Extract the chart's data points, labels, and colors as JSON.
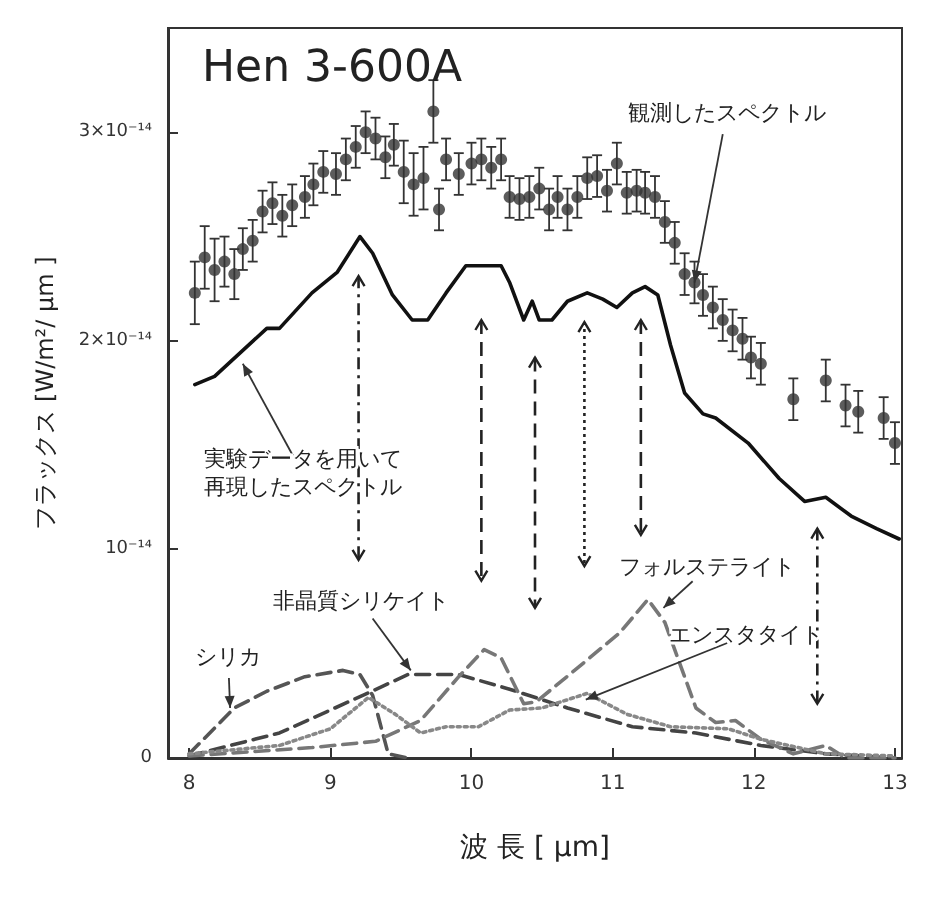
{
  "chart_data": {
    "type": "line",
    "title": "Hen 3-600A",
    "xlabel": "波 長 [ μm]",
    "ylabel": "フラックス [W/m²/ μm ]",
    "xlim": [
      7.85,
      13.05
    ],
    "ylim": [
      0,
      3.5e-14
    ],
    "xticks": [
      8,
      9,
      10,
      11,
      12,
      13
    ],
    "yticks": [
      0,
      {
        "value": 1e-14,
        "label": "10⁻¹⁴"
      },
      {
        "value": 2e-14,
        "label": "2×10⁻¹⁴"
      },
      {
        "value": 3e-14,
        "label": "3×10⁻¹⁴"
      }
    ],
    "series": [
      {
        "type": "scatter",
        "marker": "circle",
        "color": "#333333",
        "x": [
          8.04,
          8.11,
          8.18,
          8.25,
          8.32,
          8.38,
          8.45,
          8.52,
          8.59,
          8.66,
          8.73,
          8.82,
          8.88,
          8.95,
          9.04,
          9.11,
          9.18,
          9.25,
          9.32,
          9.39,
          9.45,
          9.52,
          9.59,
          9.66,
          9.73,
          9.77,
          9.82,
          9.91,
          10.0,
          10.07,
          10.14,
          10.21,
          10.27,
          10.34,
          10.41,
          10.48,
          10.55,
          10.61,
          10.68,
          10.75,
          10.82,
          10.89,
          10.96,
          11.03,
          11.1,
          11.17,
          11.23,
          11.3,
          11.37,
          11.44,
          11.51,
          11.58,
          11.64,
          11.71,
          11.78,
          11.85,
          11.92,
          11.98,
          12.05,
          12.28,
          12.51,
          12.65,
          12.74,
          12.92,
          13.0
        ],
        "values": [
          2.23e-14,
          2.4e-14,
          2.34e-14,
          2.38e-14,
          2.32e-14,
          2.44e-14,
          2.48e-14,
          2.62e-14,
          2.66e-14,
          2.6e-14,
          2.65e-14,
          2.69e-14,
          2.75e-14,
          2.81e-14,
          2.8e-14,
          2.87e-14,
          2.93e-14,
          3e-14,
          2.97e-14,
          2.88e-14,
          2.94e-14,
          2.81e-14,
          2.75e-14,
          2.78e-14,
          3.1e-14,
          2.63e-14,
          2.87e-14,
          2.8e-14,
          2.85e-14,
          2.87e-14,
          2.83e-14,
          2.87e-14,
          2.69e-14,
          2.68e-14,
          2.69e-14,
          2.73e-14,
          2.63e-14,
          2.69e-14,
          2.63e-14,
          2.69e-14,
          2.78e-14,
          2.79e-14,
          2.72e-14,
          2.85e-14,
          2.71e-14,
          2.72e-14,
          2.71e-14,
          2.69e-14,
          2.57e-14,
          2.47e-14,
          2.32e-14,
          2.28e-14,
          2.22e-14,
          2.16e-14,
          2.1e-14,
          2.05e-14,
          2.01e-14,
          1.92e-14,
          1.89e-14,
          1.72e-14,
          1.81e-14,
          1.69e-14,
          1.66e-14,
          1.63e-14,
          1.51e-14
        ],
        "errors": [
          1.5e-15,
          1.5e-15,
          1.5e-15,
          1.2e-15,
          1.2e-15,
          1e-15,
          1e-15,
          1e-15,
          1e-15,
          1e-15,
          1e-15,
          1e-15,
          1e-15,
          1e-15,
          1e-15,
          1e-15,
          1e-15,
          1e-15,
          1e-15,
          1e-15,
          1e-15,
          1.5e-15,
          1.5e-15,
          1.5e-15,
          1.5e-15,
          1e-15,
          1e-15,
          1e-15,
          1e-15,
          1e-15,
          1e-15,
          1e-15,
          1e-15,
          1e-15,
          1e-15,
          1e-15,
          1e-15,
          1e-15,
          1e-15,
          1e-15,
          1e-15,
          1e-15,
          1e-15,
          1e-15,
          1e-15,
          1e-15,
          1e-15,
          1e-15,
          1e-15,
          1e-15,
          1e-15,
          1e-15,
          1e-15,
          1e-15,
          1e-15,
          1e-15,
          1e-15,
          1e-15,
          1e-15,
          1e-15,
          1e-15,
          1e-15,
          1e-15,
          1e-15,
          1e-15
        ]
      },
      {
        "type": "line",
        "marker": "none",
        "line_style": "solid",
        "color": "#111111",
        "x": [
          8.04,
          8.18,
          8.55,
          8.64,
          8.87,
          9.05,
          9.21,
          9.3,
          9.44,
          9.58,
          9.69,
          9.82,
          9.96,
          10.21,
          10.27,
          10.37,
          10.43,
          10.48,
          10.57,
          10.68,
          10.82,
          10.93,
          11.03,
          11.14,
          11.23,
          11.32,
          11.41,
          11.51,
          11.64,
          11.73,
          11.96,
          12.18,
          12.36,
          12.51,
          12.69,
          12.87,
          13.03
        ],
        "values": [
          1.79e-14,
          1.83e-14,
          2.06e-14,
          2.06e-14,
          2.23e-14,
          2.33e-14,
          2.5e-14,
          2.42e-14,
          2.22e-14,
          2.1e-14,
          2.1e-14,
          2.23e-14,
          2.36e-14,
          2.36e-14,
          2.28e-14,
          2.1e-14,
          2.19e-14,
          2.1e-14,
          2.1e-14,
          2.19e-14,
          2.23e-14,
          2.2e-14,
          2.16e-14,
          2.23e-14,
          2.26e-14,
          2.22e-14,
          1.98e-14,
          1.75e-14,
          1.65e-14,
          1.63e-14,
          1.51e-14,
          1.34e-14,
          1.23e-14,
          1.25e-14,
          1.16e-14,
          1.1e-14,
          1.05e-14
        ]
      },
      {
        "type": "line",
        "marker": "none",
        "line_style": "dashed",
        "color": "#555555",
        "x": [
          8.0,
          8.32,
          8.55,
          8.82,
          9.09,
          9.21,
          9.3,
          9.41,
          9.55
        ],
        "values": [
          2e-16,
          2.4e-15,
          3.2e-15,
          3.9e-15,
          4.2e-15,
          4e-15,
          3e-15,
          2e-16,
          0
        ]
      },
      {
        "type": "line",
        "marker": "none",
        "line_style": "dashed",
        "color": "#444444",
        "x": [
          8.0,
          8.64,
          9.23,
          9.55,
          9.91,
          10.27,
          10.68,
          11.14,
          11.59,
          12.05,
          12.51,
          13.0
        ],
        "values": [
          1e-16,
          1.2e-15,
          3e-15,
          4e-15,
          4e-15,
          3.3e-15,
          2.4e-15,
          1.5e-15,
          1.2e-15,
          6e-16,
          2e-16,
          0
        ]
      },
      {
        "type": "line",
        "marker": "none",
        "line_style": "dashed",
        "color": "#777777",
        "x": [
          8.0,
          8.87,
          9.32,
          9.64,
          9.91,
          10.09,
          10.21,
          10.37,
          10.46,
          10.73,
          11.05,
          11.25,
          11.37,
          11.59,
          11.73,
          11.87,
          12.05,
          12.28,
          12.51,
          12.65,
          13.0
        ],
        "values": [
          1e-16,
          5e-16,
          8e-16,
          1.8e-15,
          3.9e-15,
          5.2e-15,
          4.8e-15,
          2.6e-15,
          2.7e-15,
          4.2e-15,
          6e-15,
          7.6e-15,
          6.5e-15,
          2.4e-15,
          1.7e-15,
          1.8e-15,
          9e-16,
          2e-16,
          6e-16,
          0,
          0
        ]
      },
      {
        "type": "line",
        "marker": "none",
        "line_style": "dotted",
        "color": "#888888",
        "x": [
          8.0,
          8.64,
          9.0,
          9.27,
          9.46,
          9.64,
          9.82,
          10.05,
          10.27,
          10.5,
          10.82,
          11.1,
          11.41,
          11.82,
          12.05,
          12.51,
          13.0
        ],
        "values": [
          2e-16,
          6e-16,
          1.4e-15,
          2.9e-15,
          2.1e-15,
          1.2e-15,
          1.5e-15,
          1.5e-15,
          2.3e-15,
          2.4e-15,
          3.1e-15,
          2.1e-15,
          1.5e-15,
          1.4e-15,
          9e-16,
          2e-16,
          1e-16
        ]
      }
    ],
    "annotations": [
      {
        "text": "観測したスペクトル",
        "x": 11.58,
        "y": 2.28e-14
      },
      {
        "text": "実験データを用いて再現したスペクトル",
        "x": 8.38,
        "y": 1.89e-14
      },
      {
        "text": "非晶質シリケイト",
        "x": 9.57,
        "y": 4.2e-15
      },
      {
        "text": "シリカ",
        "x": 8.29,
        "y": 2.4e-15
      },
      {
        "text": "フォルステライト",
        "x": 11.36,
        "y": 7.2e-15
      },
      {
        "text": "エンスタタイト",
        "x": 10.81,
        "y": 2.8e-15
      }
    ]
  }
}
